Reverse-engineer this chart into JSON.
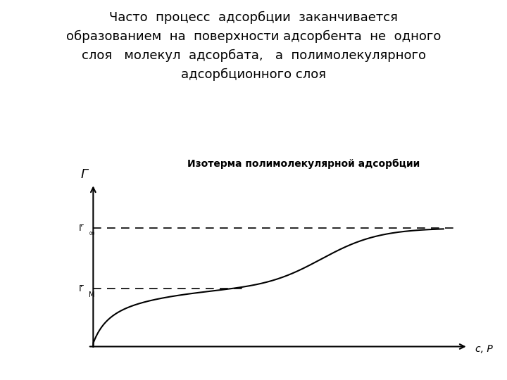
{
  "title": "Часто  процесс  адсорбции  заканчивается\nобразованием  на  поверхности адсорбента  не  одного\nслоя   молекул  адсорбата,   а  полимолекулярного\nадсорбционного слоя",
  "subtitle": "Изотерма полимолекулярной адсорбции",
  "title_fontsize": 13,
  "subtitle_fontsize": 10,
  "y_axis_label": "Γ",
  "x_axis_label": "c, P",
  "gamma_inf": 0.78,
  "gamma_m": 0.38,
  "background_color": "#ffffff",
  "curve_color": "#000000",
  "dashed_color": "#000000",
  "axis_color": "#000000",
  "xlim": [
    0.0,
    1.08
  ],
  "ylim": [
    0.0,
    1.08
  ]
}
